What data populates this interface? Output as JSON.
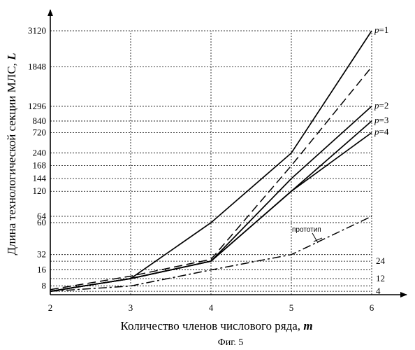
{
  "chart_data": {
    "type": "line",
    "ylabel_main": "Длина технологической секции МЛС, ",
    "ylabel_var": "L",
    "xlabel_main": "Количество членов числового ряда, ",
    "xlabel_var": "m",
    "caption": "Фиг. 5",
    "x_ticks": [
      "2",
      "3",
      "4",
      "5",
      "6"
    ],
    "y_ticks": [
      "8",
      "16",
      "32",
      "60",
      "64",
      "120",
      "144",
      "168",
      "240",
      "720",
      "840",
      "1296",
      "1848",
      "3120"
    ],
    "right_ticks": [
      "4",
      "12",
      "24"
    ],
    "grid": true,
    "series": [
      {
        "name": "p=1",
        "label_prefix": "p",
        "label_suffix": "=1",
        "style": "solid",
        "x": [
          2,
          3,
          4,
          5,
          6
        ],
        "y": [
          4,
          12,
          60,
          240,
          3120
        ]
      },
      {
        "name": "p=2",
        "label_prefix": "p",
        "label_suffix": "=2",
        "style": "solid",
        "x": [
          2,
          3,
          4,
          5,
          6
        ],
        "y": [
          4,
          12,
          24,
          144,
          1296
        ]
      },
      {
        "name": "p=3",
        "label_prefix": "p",
        "label_suffix": "=3",
        "style": "solid",
        "x": [
          2,
          3,
          4,
          5,
          6
        ],
        "y": [
          4,
          12,
          24,
          120,
          840
        ]
      },
      {
        "name": "p=4",
        "label_prefix": "p",
        "label_suffix": "=4",
        "style": "solid",
        "x": [
          2,
          3,
          4,
          5,
          6
        ],
        "y": [
          4,
          12,
          24,
          120,
          720
        ]
      },
      {
        "name": "",
        "style": "dashed",
        "x": [
          2,
          3,
          4,
          5,
          6
        ],
        "y": [
          5,
          13,
          26,
          168,
          1848
        ]
      },
      {
        "name": "прототип",
        "style": "dashdot",
        "x": [
          2,
          3,
          4,
          5,
          6
        ],
        "y": [
          4,
          8,
          16,
          32,
          64
        ]
      }
    ]
  }
}
